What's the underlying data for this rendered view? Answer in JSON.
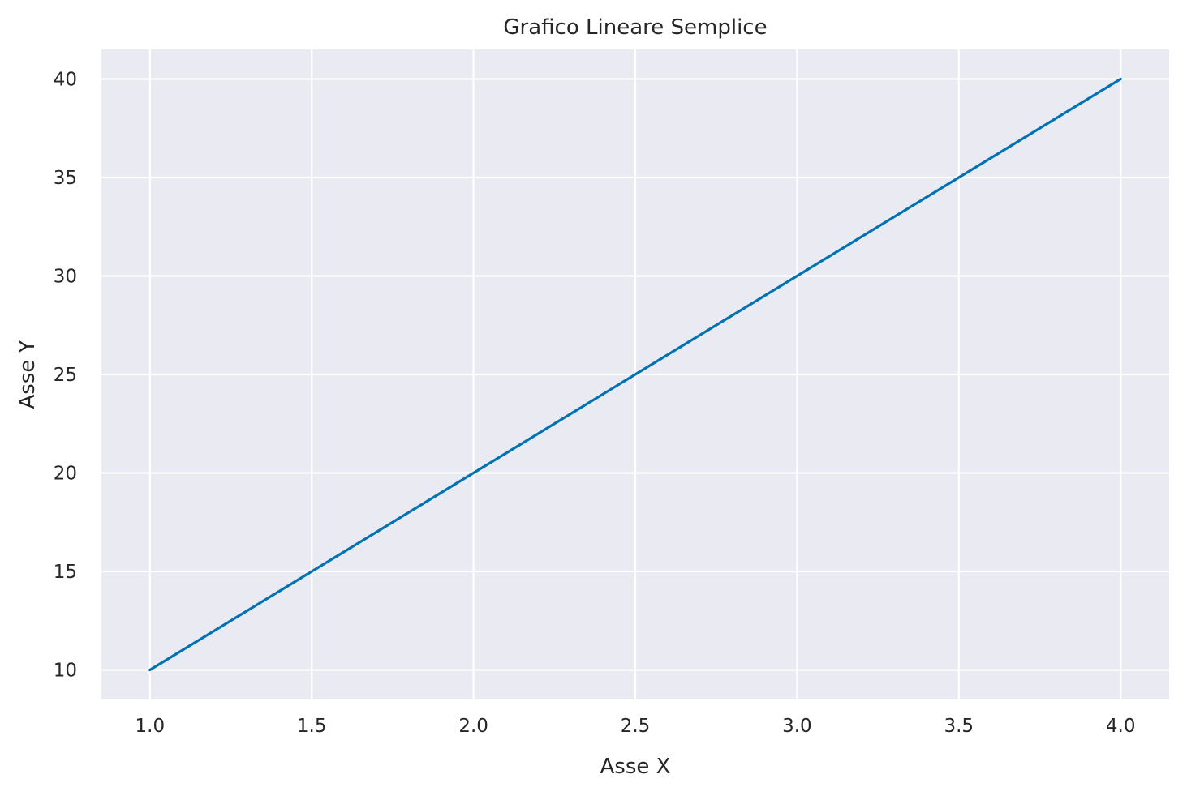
{
  "colors": {
    "plot_background": "#eaeaf2",
    "grid": "#ffffff",
    "line": "#0072b2",
    "text": "#262626"
  },
  "chart_data": {
    "type": "line",
    "title": "Grafico Lineare Semplice",
    "xlabel": "Asse X",
    "ylabel": "Asse Y",
    "x": [
      1,
      2,
      3,
      4
    ],
    "series": [
      {
        "values": [
          10,
          20,
          30,
          40
        ]
      }
    ],
    "xlim": [
      0.85,
      4.15
    ],
    "ylim": [
      8.5,
      41.5
    ],
    "x_ticks": [
      "1.0",
      "1.5",
      "2.0",
      "2.5",
      "3.0",
      "3.5",
      "4.0"
    ],
    "y_ticks": [
      "10",
      "15",
      "20",
      "25",
      "30",
      "35",
      "40"
    ],
    "grid": true,
    "legend": "none"
  }
}
